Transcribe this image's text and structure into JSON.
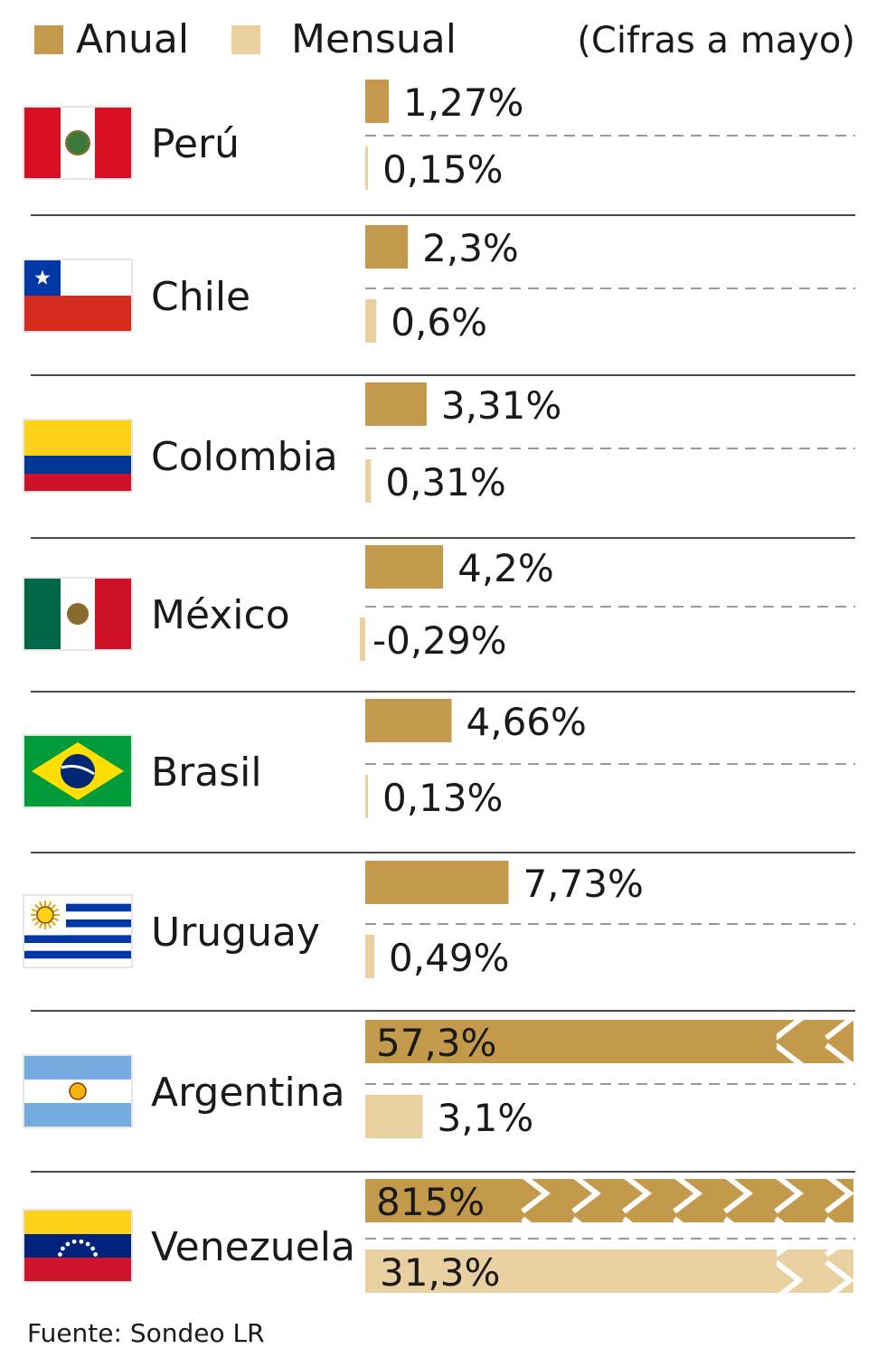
{
  "chart_data": {
    "type": "bar",
    "orientation": "horizontal",
    "note": "(Cifras a mayo)",
    "source": "Fuente: Sondeo LR",
    "series": [
      {
        "name": "Anual",
        "color": "#C39A4B"
      },
      {
        "name": "Mensual",
        "color": "#E9D0A0"
      }
    ],
    "categories": [
      "Perú",
      "Chile",
      "Colombia",
      "México",
      "Brasil",
      "Uruguay",
      "Argentina",
      "Venezuela"
    ],
    "rows": [
      {
        "country": "Perú",
        "flag": "peru-flag",
        "anual": 1.27,
        "anual_label": "1,27%",
        "mensual": 0.15,
        "mensual_label": "0,15%"
      },
      {
        "country": "Chile",
        "flag": "chile-flag",
        "anual": 2.3,
        "anual_label": "2,3%",
        "mensual": 0.6,
        "mensual_label": "0,6%"
      },
      {
        "country": "Colombia",
        "flag": "colombia-flag",
        "anual": 3.31,
        "anual_label": "3,31%",
        "mensual": 0.31,
        "mensual_label": "0,31%"
      },
      {
        "country": "México",
        "flag": "mexico-flag",
        "anual": 4.2,
        "anual_label": "4,2%",
        "mensual": -0.29,
        "mensual_label": "-0,29%"
      },
      {
        "country": "Brasil",
        "flag": "brazil-flag",
        "anual": 4.66,
        "anual_label": "4,66%",
        "mensual": 0.13,
        "mensual_label": "0,13%"
      },
      {
        "country": "Uruguay",
        "flag": "uruguay-flag",
        "anual": 7.73,
        "anual_label": "7,73%",
        "mensual": 0.49,
        "mensual_label": "0,49%"
      },
      {
        "country": "Argentina",
        "flag": "argentina-flag",
        "anual": 57.3,
        "anual_label": "57,3%",
        "anual_truncated": true,
        "mensual": 3.1,
        "mensual_label": "3,1%"
      },
      {
        "country": "Venezuela",
        "flag": "venezuela-flag",
        "anual": 815,
        "anual_label": "815%",
        "anual_truncated": true,
        "mensual": 31.3,
        "mensual_label": "31,3%",
        "mensual_truncated": true
      }
    ]
  }
}
